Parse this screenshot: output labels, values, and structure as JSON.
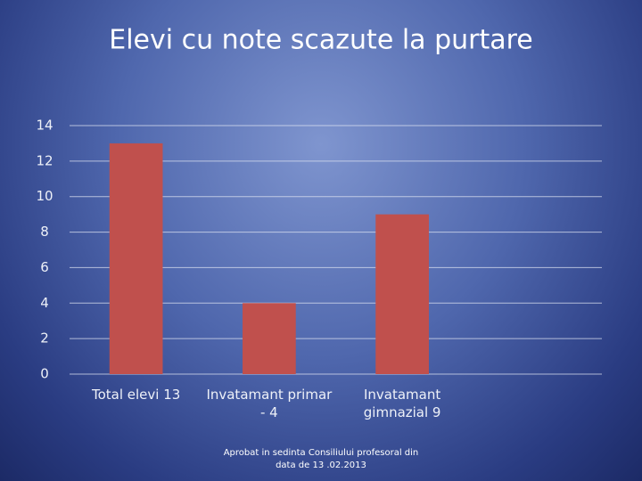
{
  "chart_data": {
    "type": "bar",
    "title": "Elevi cu note scazute la purtare",
    "categories": [
      "Total elevi 13",
      "Invatamant primar - 4",
      "Invatamant gimnazial 9",
      null
    ],
    "values": [
      13,
      4,
      9,
      null
    ],
    "color": "#c0504d",
    "ylim": [
      0,
      14
    ],
    "yticks": [
      0,
      2,
      4,
      6,
      8,
      10,
      12,
      14
    ],
    "grid": true,
    "footer": "Aprobat in sedinta Consiliului profesoral din data de 13 .02.2013"
  }
}
